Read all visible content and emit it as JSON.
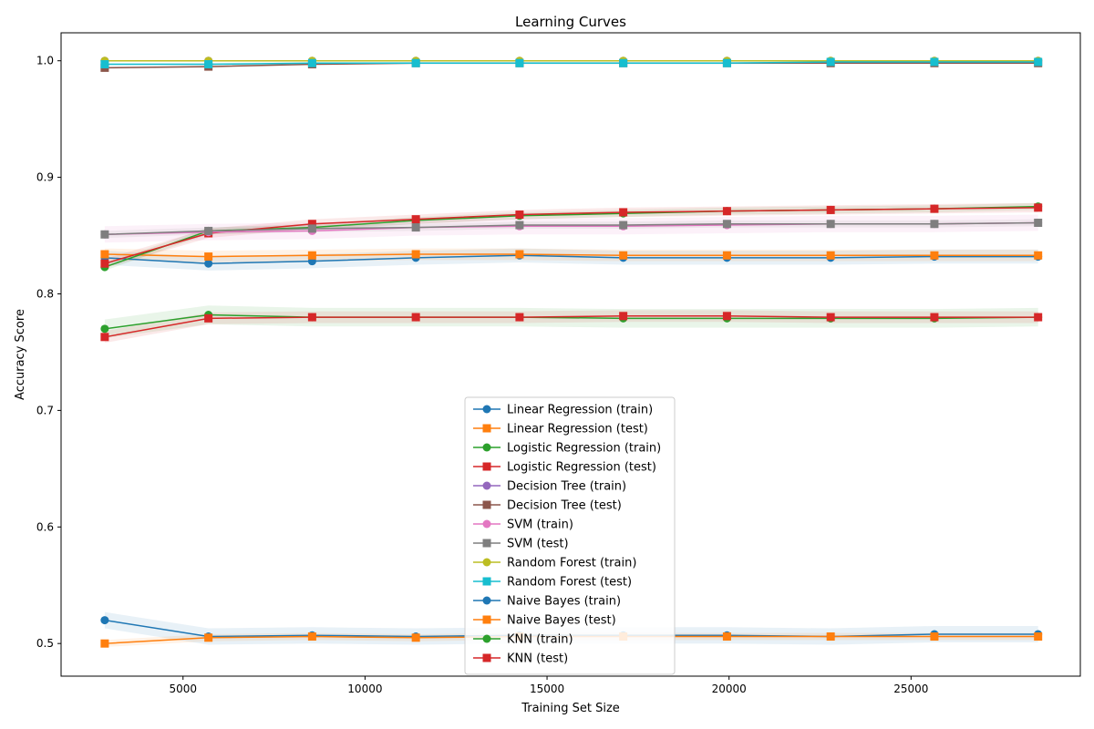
{
  "chart_data": {
    "type": "line",
    "title": "Learning Curves",
    "xlabel": "Training Set Size",
    "ylabel": "Accuracy Score",
    "xlim": [
      1650,
      29650
    ],
    "ylim": [
      0.472,
      1.024
    ],
    "xticks": [
      5000,
      10000,
      15000,
      20000,
      25000
    ],
    "xtick_labels": [
      "5000",
      "10000",
      "15000",
      "20000",
      "25000"
    ],
    "yticks": [
      0.5,
      0.6,
      0.7,
      0.8,
      0.9,
      1.0
    ],
    "ytick_labels": [
      "0.5",
      "0.6",
      "0.7",
      "0.8",
      "0.9",
      "1.0"
    ],
    "grid": false,
    "legend_position": "lower-center",
    "x": [
      2849,
      5698,
      8547,
      11396,
      14245,
      17094,
      19943,
      22792,
      25641,
      28490
    ],
    "series": [
      {
        "name": "Linear Regression (train)",
        "marker": "circle",
        "color": "#1f77b4",
        "band_color": "#1f77b4",
        "values": [
          0.831,
          0.826,
          0.828,
          0.831,
          0.833,
          0.831,
          0.831,
          0.831,
          0.832,
          0.832
        ],
        "band": 0.006
      },
      {
        "name": "Linear Regression (test)",
        "marker": "square",
        "color": "#ff7f0e",
        "band_color": "#ff7f0e",
        "values": [
          0.834,
          0.832,
          0.833,
          0.834,
          0.834,
          0.833,
          0.833,
          0.833,
          0.833,
          0.833
        ],
        "band": 0.005
      },
      {
        "name": "Logistic Regression (train)",
        "marker": "circle",
        "color": "#2ca02c",
        "band_color": "#2ca02c",
        "values": [
          0.823,
          0.854,
          0.857,
          0.863,
          0.867,
          0.869,
          0.871,
          0.872,
          0.873,
          0.875
        ],
        "band": 0.003
      },
      {
        "name": "Logistic Regression (test)",
        "marker": "square",
        "color": "#d62728",
        "band_color": "#d62728",
        "values": [
          0.826,
          0.852,
          0.86,
          0.864,
          0.868,
          0.87,
          0.871,
          0.872,
          0.873,
          0.874
        ],
        "band": 0.004
      },
      {
        "name": "Decision Tree (train)",
        "marker": "circle",
        "color": "#9467bd",
        "band_color": "#9467bd",
        "values": [
          1.0,
          1.0,
          1.0,
          1.0,
          1.0,
          1.0,
          1.0,
          1.0,
          1.0,
          1.0
        ],
        "band": 0.0
      },
      {
        "name": "Decision Tree (test)",
        "marker": "square",
        "color": "#8c564b",
        "band_color": "#8c564b",
        "values": [
          0.994,
          0.995,
          0.997,
          0.998,
          0.998,
          0.998,
          0.998,
          0.998,
          0.998,
          0.998
        ],
        "band": 0.001
      },
      {
        "name": "SVM (train)",
        "marker": "circle",
        "color": "#e377c2",
        "band_color": "#e377c2",
        "values": [
          0.851,
          0.853,
          0.854,
          0.857,
          0.858,
          0.858,
          0.859,
          0.86,
          0.86,
          0.861
        ],
        "band": 0.007
      },
      {
        "name": "SVM (test)",
        "marker": "square",
        "color": "#7f7f7f",
        "band_color": "#7f7f7f",
        "values": [
          0.851,
          0.854,
          0.856,
          0.857,
          0.859,
          0.859,
          0.86,
          0.86,
          0.86,
          0.861
        ],
        "band": 0.003
      },
      {
        "name": "Random Forest (train)",
        "marker": "circle",
        "color": "#bcbd22",
        "band_color": "#bcbd22",
        "values": [
          1.0,
          1.0,
          1.0,
          1.0,
          1.0,
          1.0,
          1.0,
          1.0,
          1.0,
          1.0
        ],
        "band": 0.0
      },
      {
        "name": "Random Forest (test)",
        "marker": "square",
        "color": "#17becf",
        "band_color": "#17becf",
        "values": [
          0.997,
          0.997,
          0.998,
          0.998,
          0.998,
          0.998,
          0.998,
          0.999,
          0.999,
          0.999
        ],
        "band": 0.001
      },
      {
        "name": "Naive Bayes (train)",
        "marker": "circle",
        "color": "#1f77b4",
        "band_color": "#1f77b4",
        "values": [
          0.52,
          0.506,
          0.507,
          0.506,
          0.507,
          0.507,
          0.507,
          0.506,
          0.508,
          0.508
        ],
        "band": 0.007
      },
      {
        "name": "Naive Bayes (test)",
        "marker": "square",
        "color": "#ff7f0e",
        "band_color": "#ff7f0e",
        "values": [
          0.5,
          0.505,
          0.506,
          0.505,
          0.506,
          0.506,
          0.506,
          0.506,
          0.506,
          0.506
        ],
        "band": 0.003
      },
      {
        "name": "KNN (train)",
        "marker": "circle",
        "color": "#2ca02c",
        "band_color": "#2ca02c",
        "values": [
          0.77,
          0.782,
          0.78,
          0.78,
          0.78,
          0.779,
          0.779,
          0.779,
          0.779,
          0.78
        ],
        "band": 0.008
      },
      {
        "name": "KNN (test)",
        "marker": "square",
        "color": "#d62728",
        "band_color": "#d62728",
        "values": [
          0.763,
          0.779,
          0.78,
          0.78,
          0.78,
          0.781,
          0.781,
          0.78,
          0.78,
          0.78
        ],
        "band": 0.005
      }
    ]
  }
}
